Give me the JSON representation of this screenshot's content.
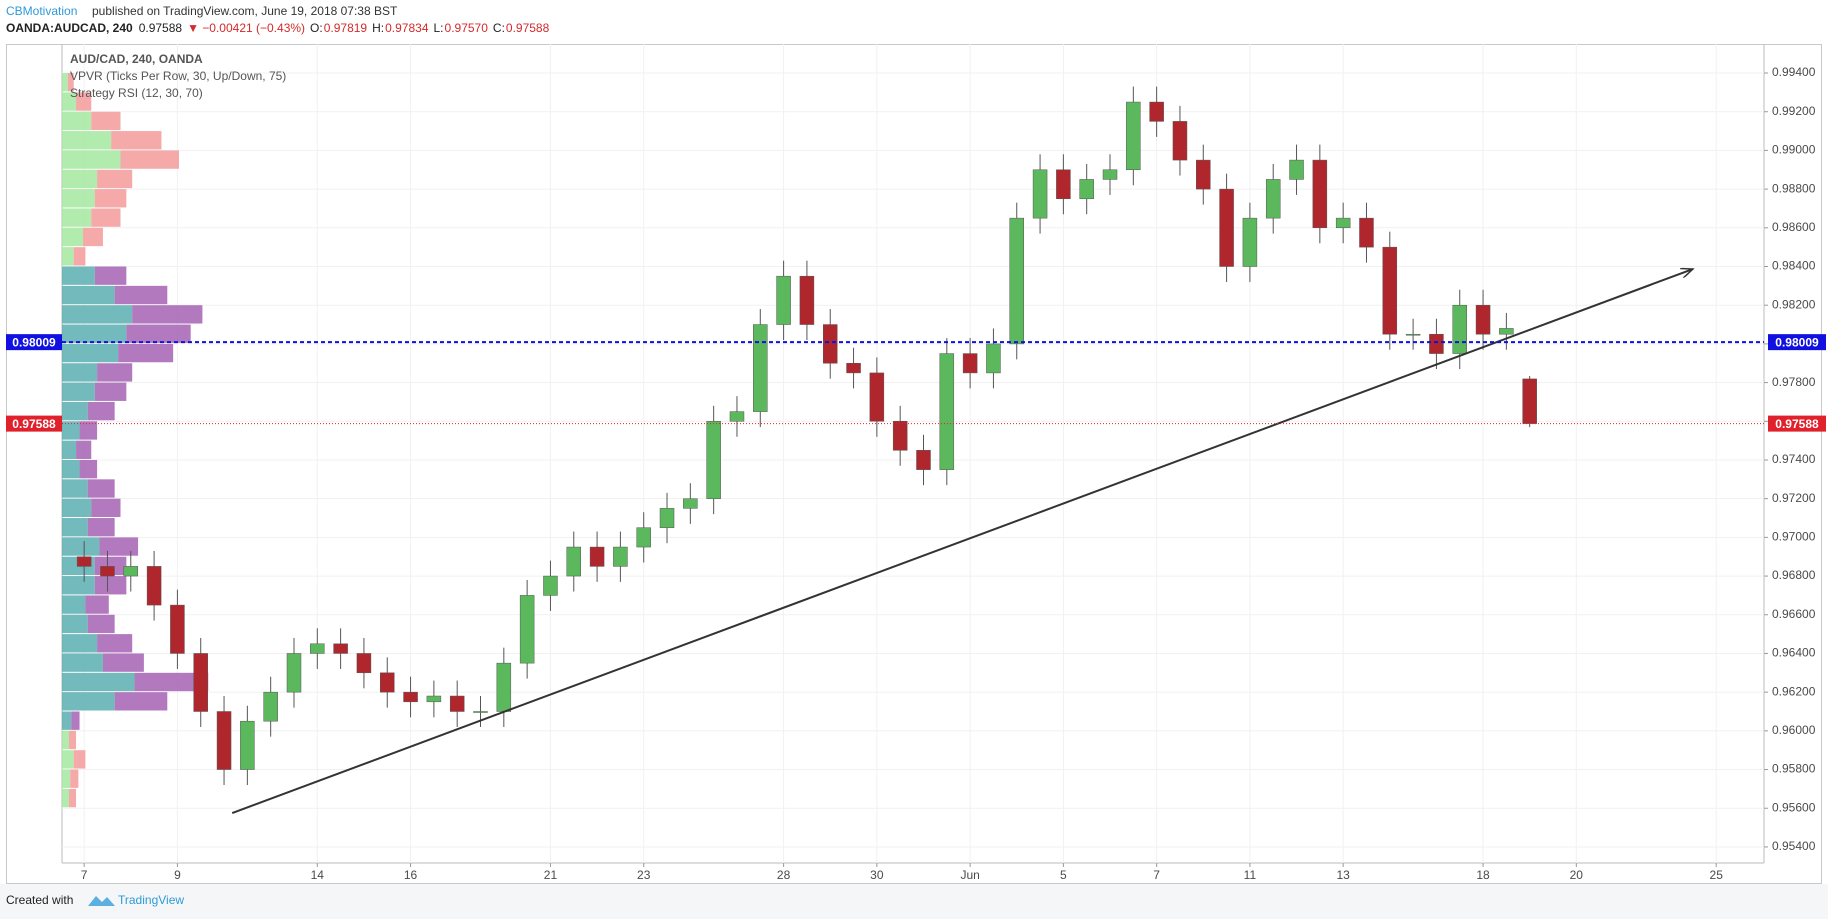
{
  "header": {
    "author": "CBMotivation",
    "published": "published on TradingView.com, June 19, 2018 07:38 BST"
  },
  "quote": {
    "symbol": "OANDA:AUDCAD, 240",
    "last": "0.97588",
    "change": "▼ −0.00421 (−0.43%)",
    "ohlc": [
      {
        "k": "O:",
        "v": "0.97819"
      },
      {
        "k": "H:",
        "v": "0.97834"
      },
      {
        "k": "L:",
        "v": "0.97570"
      },
      {
        "k": "C:",
        "v": "0.97588"
      }
    ]
  },
  "footer": {
    "created": "Created with",
    "brand": "TradingView"
  },
  "chart_data": {
    "type": "candlestick",
    "legend_lines": [
      "AUD/CAD, 240, OANDA",
      "VPVR (Ticks Per Row, 30, Up/Down, 75)",
      "Strategy RSI (12, 30, 70)"
    ],
    "up_color": "#5cb85c",
    "down_color": "#b0262d",
    "grid": true,
    "xlim": [
      -0.475,
      36.025
    ],
    "ylim": [
      0.95317,
      0.9955
    ],
    "xticks": [
      {
        "value": 0,
        "label": "7"
      },
      {
        "value": 2,
        "label": "9"
      },
      {
        "value": 5,
        "label": "14"
      },
      {
        "value": 7,
        "label": "16"
      },
      {
        "value": 10,
        "label": "21"
      },
      {
        "value": 12,
        "label": "23"
      },
      {
        "value": 15,
        "label": "28"
      },
      {
        "value": 17,
        "label": "30"
      },
      {
        "value": 19,
        "label": "Jun"
      },
      {
        "value": 21,
        "label": "5"
      },
      {
        "value": 23,
        "label": "7"
      },
      {
        "value": 25,
        "label": "11"
      },
      {
        "value": 27,
        "label": "13"
      },
      {
        "value": 30,
        "label": "18"
      },
      {
        "value": 32,
        "label": "20"
      },
      {
        "value": 35,
        "label": "25"
      }
    ],
    "yticks": [
      {
        "value": 0.954,
        "label": "0.95400"
      },
      {
        "value": 0.956,
        "label": "0.95600"
      },
      {
        "value": 0.958,
        "label": "0.95800"
      },
      {
        "value": 0.96,
        "label": "0.96000"
      },
      {
        "value": 0.962,
        "label": "0.96200"
      },
      {
        "value": 0.964,
        "label": "0.96400"
      },
      {
        "value": 0.966,
        "label": "0.96600"
      },
      {
        "value": 0.968,
        "label": "0.96800"
      },
      {
        "value": 0.97,
        "label": "0.97000"
      },
      {
        "value": 0.972,
        "label": "0.97200"
      },
      {
        "value": 0.974,
        "label": "0.97400"
      },
      {
        "value": 0.976,
        "label": "0.97600"
      },
      {
        "value": 0.978,
        "label": "0.97800"
      },
      {
        "value": 0.98,
        "label": "0.98000"
      },
      {
        "value": 0.982,
        "label": "0.98200"
      },
      {
        "value": 0.984,
        "label": "0.98400"
      },
      {
        "value": 0.986,
        "label": "0.98600"
      },
      {
        "value": 0.988,
        "label": "0.98800"
      },
      {
        "value": 0.99,
        "label": "0.99000"
      },
      {
        "value": 0.992,
        "label": "0.99200"
      },
      {
        "value": 0.994,
        "label": "0.99400"
      }
    ],
    "x": [
      0,
      0.5,
      1,
      1.5,
      2,
      2.5,
      3,
      3.5,
      4,
      4.5,
      5,
      5.5,
      6,
      6.5,
      7,
      7.5,
      8,
      8.5,
      9,
      9.5,
      10,
      10.5,
      11,
      11.5,
      12,
      12.5,
      13,
      13.5,
      14,
      14.5,
      15,
      15.5,
      16,
      16.5,
      17,
      17.5,
      18,
      18.5,
      19,
      19.5,
      20,
      20.5,
      21,
      21.5,
      22,
      22.5,
      23,
      23.5,
      24,
      24.5,
      25,
      25.5,
      26,
      26.5,
      27,
      27.5,
      28,
      28.5,
      29,
      29.5,
      30,
      30.5,
      31
    ],
    "open": [
      0.969,
      0.9685,
      0.968,
      0.9685,
      0.9665,
      0.964,
      0.961,
      0.958,
      0.9605,
      0.962,
      0.964,
      0.9645,
      0.964,
      0.963,
      0.962,
      0.9615,
      0.9618,
      0.961,
      0.961,
      0.9635,
      0.967,
      0.968,
      0.9695,
      0.9685,
      0.9695,
      0.9705,
      0.9715,
      0.972,
      0.976,
      0.9765,
      0.981,
      0.9835,
      0.981,
      0.979,
      0.9785,
      0.976,
      0.9745,
      0.9735,
      0.9795,
      0.9785,
      0.98,
      0.9865,
      0.989,
      0.9875,
      0.9885,
      0.989,
      0.9925,
      0.9915,
      0.9895,
      0.988,
      0.984,
      0.9865,
      0.9885,
      0.9895,
      0.986,
      0.9865,
      0.985,
      0.9805,
      0.9805,
      0.9795,
      0.982,
      0.9805,
      0.97819
    ],
    "high": [
      0.9698,
      0.9693,
      0.9693,
      0.9693,
      0.9673,
      0.9648,
      0.9618,
      0.9613,
      0.9628,
      0.9648,
      0.9653,
      0.9653,
      0.9648,
      0.9638,
      0.9628,
      0.9626,
      0.9626,
      0.9618,
      0.9643,
      0.9678,
      0.9688,
      0.9703,
      0.9703,
      0.9703,
      0.9713,
      0.9723,
      0.9728,
      0.9768,
      0.9773,
      0.9818,
      0.9843,
      0.9843,
      0.9818,
      0.9798,
      0.9793,
      0.9768,
      0.9753,
      0.9803,
      0.9803,
      0.9808,
      0.9873,
      0.9898,
      0.9898,
      0.9893,
      0.9898,
      0.9933,
      0.9933,
      0.9923,
      0.9903,
      0.9888,
      0.9873,
      0.9893,
      0.9903,
      0.9903,
      0.9873,
      0.9873,
      0.9858,
      0.9813,
      0.9813,
      0.9828,
      0.9828,
      0.9816,
      0.97834
    ],
    "low": [
      0.9677,
      0.9672,
      0.9672,
      0.9657,
      0.9632,
      0.9602,
      0.9572,
      0.9572,
      0.9597,
      0.9612,
      0.9632,
      0.9632,
      0.9622,
      0.9612,
      0.9607,
      0.9607,
      0.9602,
      0.9602,
      0.9602,
      0.9627,
      0.9662,
      0.9672,
      0.9677,
      0.9677,
      0.9687,
      0.9697,
      0.9707,
      0.9712,
      0.9752,
      0.9757,
      0.9802,
      0.9802,
      0.9782,
      0.9777,
      0.9752,
      0.9737,
      0.9727,
      0.9727,
      0.9777,
      0.9777,
      0.9792,
      0.9857,
      0.9867,
      0.9867,
      0.9877,
      0.9882,
      0.9907,
      0.9887,
      0.9872,
      0.9832,
      0.9832,
      0.9857,
      0.9877,
      0.9852,
      0.9852,
      0.9842,
      0.9797,
      0.9797,
      0.9787,
      0.9787,
      0.9797,
      0.9797,
      0.9757
    ],
    "close": [
      0.9685,
      0.968,
      0.9685,
      0.9665,
      0.964,
      0.961,
      0.958,
      0.9605,
      0.962,
      0.964,
      0.9645,
      0.964,
      0.963,
      0.962,
      0.9615,
      0.9618,
      0.961,
      0.961,
      0.9635,
      0.967,
      0.968,
      0.9695,
      0.9685,
      0.9695,
      0.9705,
      0.9715,
      0.972,
      0.976,
      0.9765,
      0.981,
      0.9835,
      0.981,
      0.979,
      0.9785,
      0.976,
      0.9745,
      0.9735,
      0.9795,
      0.9785,
      0.98,
      0.9865,
      0.989,
      0.9875,
      0.9885,
      0.989,
      0.9925,
      0.9915,
      0.9895,
      0.988,
      0.984,
      0.9865,
      0.9885,
      0.9895,
      0.986,
      0.9865,
      0.985,
      0.9805,
      0.9805,
      0.9795,
      0.982,
      0.9805,
      0.9808,
      0.97588
    ],
    "horizontal_lines": [
      {
        "value": 0.98009,
        "color": "#1010e0",
        "style": "dashed"
      },
      {
        "value": 0.97588,
        "color": "#e0202a",
        "style": "dotted"
      }
    ],
    "trendline": {
      "x": [
        3.175,
        34.5
      ],
      "values": [
        0.95575,
        0.98387
      ],
      "color": "#333333"
    },
    "vpvr": {
      "value_area": [
        0.96,
        0.984
      ],
      "colors": {
        "up_in": "#5aaeb0",
        "down_in": "#a561b3",
        "up_out": "#a5e8a0",
        "down_out": "#f49a9a"
      },
      "row_prices": [
        0.956,
        0.957,
        0.958,
        0.959,
        0.96,
        0.961,
        0.962,
        0.963,
        0.964,
        0.965,
        0.966,
        0.967,
        0.968,
        0.969,
        0.97,
        0.971,
        0.972,
        0.973,
        0.974,
        0.975,
        0.976,
        0.977,
        0.978,
        0.979,
        0.98,
        0.981,
        0.982,
        0.983,
        0.984,
        0.985,
        0.986,
        0.987,
        0.988,
        0.989,
        0.99,
        0.991,
        0.992,
        0.993
      ],
      "up": [
        6,
        7,
        10,
        6,
        8,
        45,
        62,
        35,
        30,
        22,
        20,
        28,
        28,
        32,
        22,
        25,
        22,
        15,
        12,
        15,
        22,
        28,
        30,
        48,
        55,
        60,
        45,
        28,
        10,
        18,
        25,
        28,
        30,
        50,
        42,
        25,
        12,
        5
      ],
      "down": [
        6,
        7,
        10,
        6,
        7,
        45,
        63,
        35,
        30,
        23,
        20,
        27,
        27,
        33,
        23,
        25,
        23,
        15,
        13,
        15,
        23,
        27,
        30,
        47,
        55,
        60,
        45,
        27,
        10,
        17,
        25,
        27,
        30,
        50,
        43,
        25,
        13,
        5
      ]
    }
  }
}
